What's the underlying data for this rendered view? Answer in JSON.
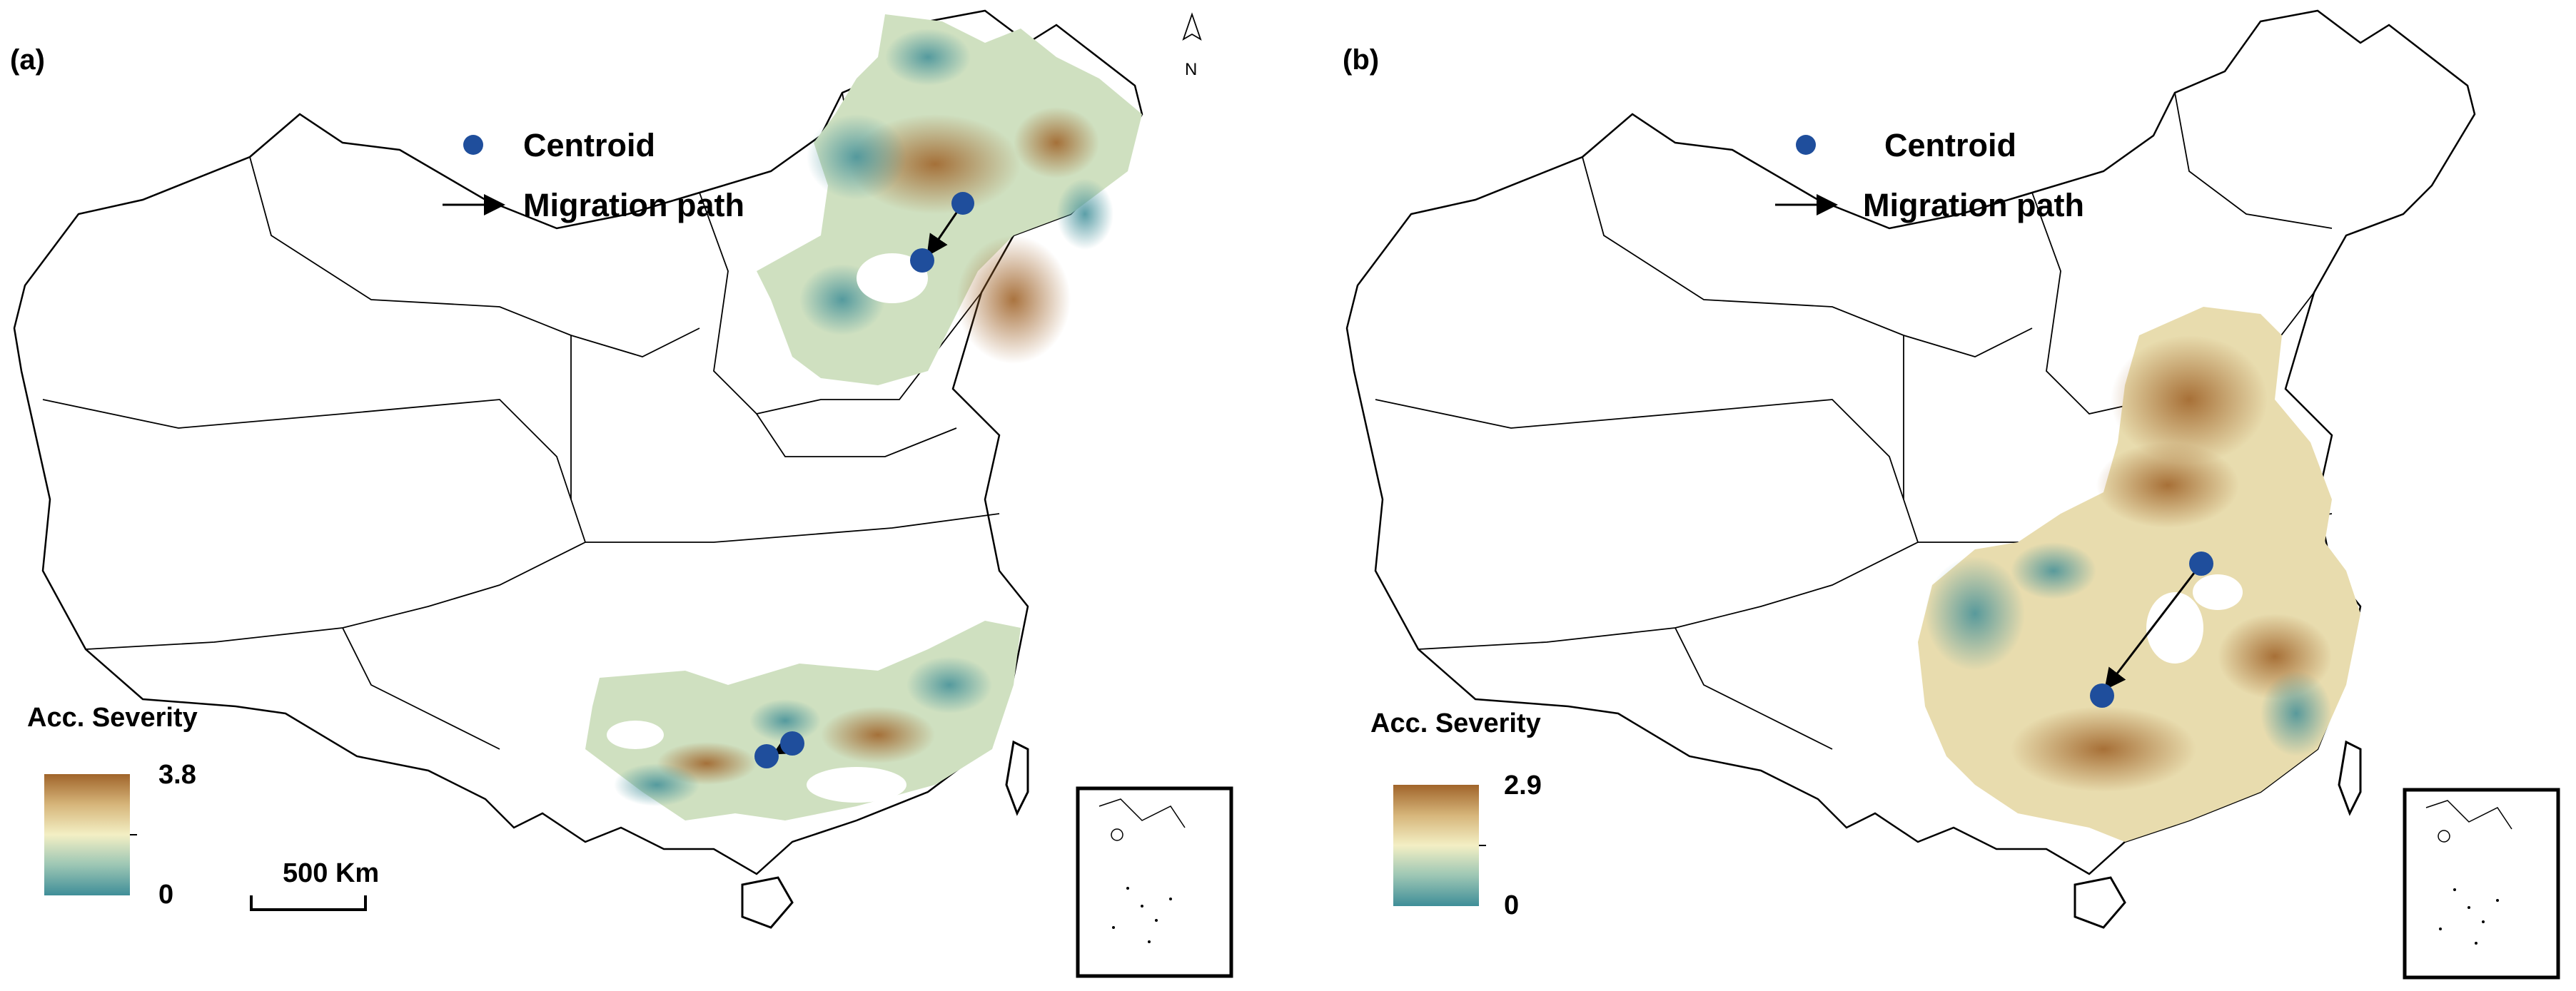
{
  "panels": [
    {
      "tag": "(a)",
      "legend": {
        "centroid_label": "Centroid",
        "path_label": "Migration path"
      },
      "severity": {
        "title": "Acc. Severity",
        "max_label": "3.8",
        "min_label": "0",
        "max_value": 3.8,
        "min_value": 0
      },
      "scale_bar": "500 Km",
      "north": "N"
    },
    {
      "tag": "(b)",
      "legend": {
        "centroid_label": "Centroid",
        "path_label": "Migration path"
      },
      "severity": {
        "title": "Acc. Severity",
        "max_label": "2.9",
        "min_label": "0",
        "max_value": 2.9,
        "min_value": 0
      }
    }
  ],
  "colors": {
    "centroid": "#1f4e9c",
    "severity_high": "#a0642a",
    "severity_mid": "#f3efc4",
    "severity_low": "#3f8e98",
    "boundary": "#000000"
  }
}
